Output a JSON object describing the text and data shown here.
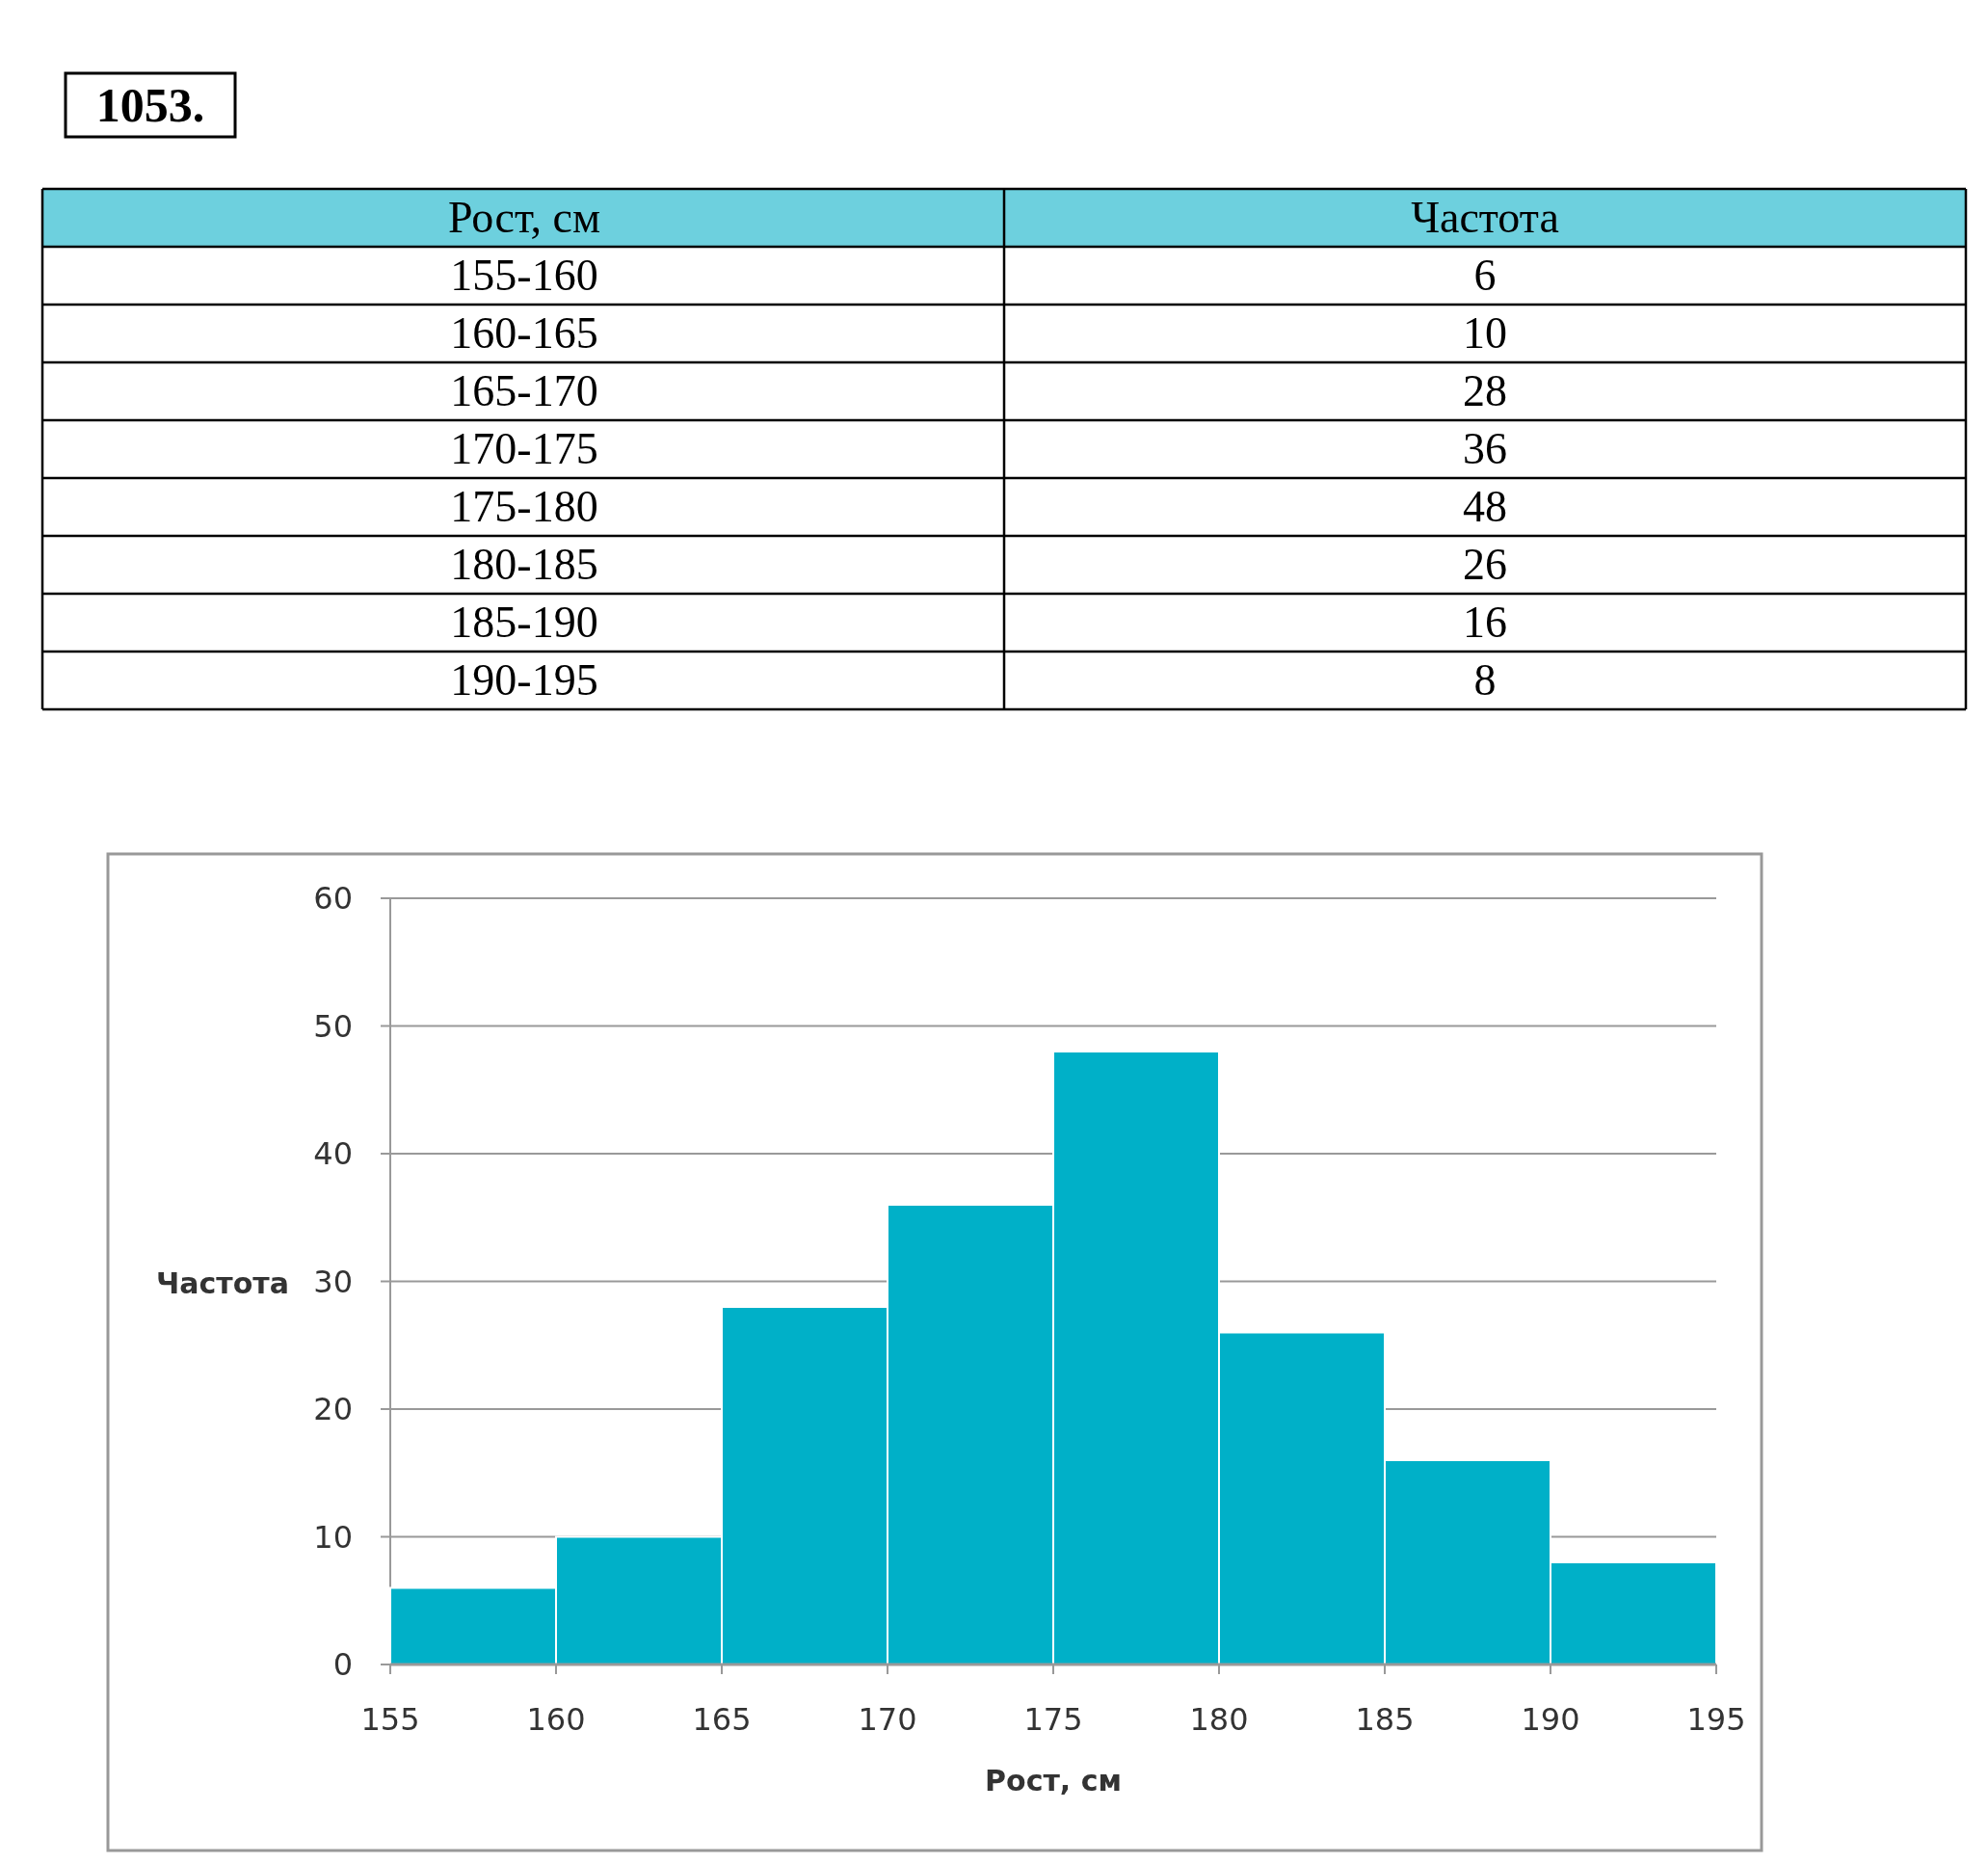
{
  "chart_data": [
    {
      "type": "other",
      "title": "1053.",
      "xlabel": "Рост, см",
      "ylabel": "Частота",
      "categories": [
        "155-160",
        "160-165",
        "165-170",
        "170-175",
        "175-180",
        "180-185",
        "185-190",
        "190-195"
      ],
      "values": [
        6,
        10,
        28,
        36,
        48,
        26,
        16,
        8
      ],
      "color": "#6dd0de",
      "data_labels": true
    },
    {
      "type": "histogram",
      "xlabel": "Рост, см",
      "ylabel": "Частота",
      "bins": [
        155,
        160,
        165,
        170,
        175,
        180,
        185,
        190,
        195
      ],
      "values": [
        6,
        10,
        28,
        36,
        48,
        26,
        16,
        8
      ],
      "color": "#00b0c8",
      "xlim": [
        155,
        195
      ],
      "xticks": [
        155,
        160,
        165,
        170,
        175,
        180,
        185,
        190,
        195
      ],
      "ylim": [
        0,
        60
      ],
      "yticks": [
        0,
        10,
        20,
        30,
        40,
        50,
        60
      ],
      "grid": "y"
    }
  ]
}
